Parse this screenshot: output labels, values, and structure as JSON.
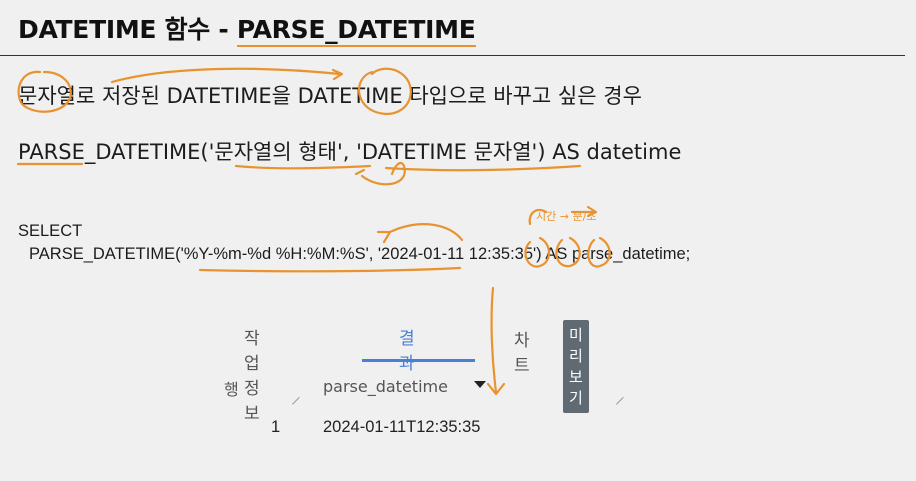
{
  "slide": {
    "title_prefix": "DATETIME 함수 - ",
    "title_highlight": "PARSE_DATETIME",
    "line1": "문자열로 저장된 DATETIME을 DATETIME 타입으로 바꾸고 싶은 경우",
    "line2": "PARSE_DATETIME('문자열의 형태', 'DATETIME 문자열') AS datetime"
  },
  "code": {
    "line1": "SELECT",
    "line2": "PARSE_DATETIME('%Y-%m-%d %H:%M:%S', '2024-01-11 12:35:35') AS parse_datetime;"
  },
  "tabs": [
    {
      "label": "작업 정보",
      "active": false
    },
    {
      "label": "결과",
      "active": true
    },
    {
      "label": "차트",
      "active": false
    }
  ],
  "preview_badge": "미리보기",
  "table": {
    "columns": [
      "행",
      "parse_datetime"
    ],
    "rows": [
      {
        "row": "1",
        "parse_datetime": "2024-01-11T12:35:35"
      }
    ]
  },
  "annotation_text": "시간 → 분/초",
  "colors": {
    "ink": "#e8932f",
    "accent": "#4a7fd6",
    "badge": "#5f6a72"
  }
}
